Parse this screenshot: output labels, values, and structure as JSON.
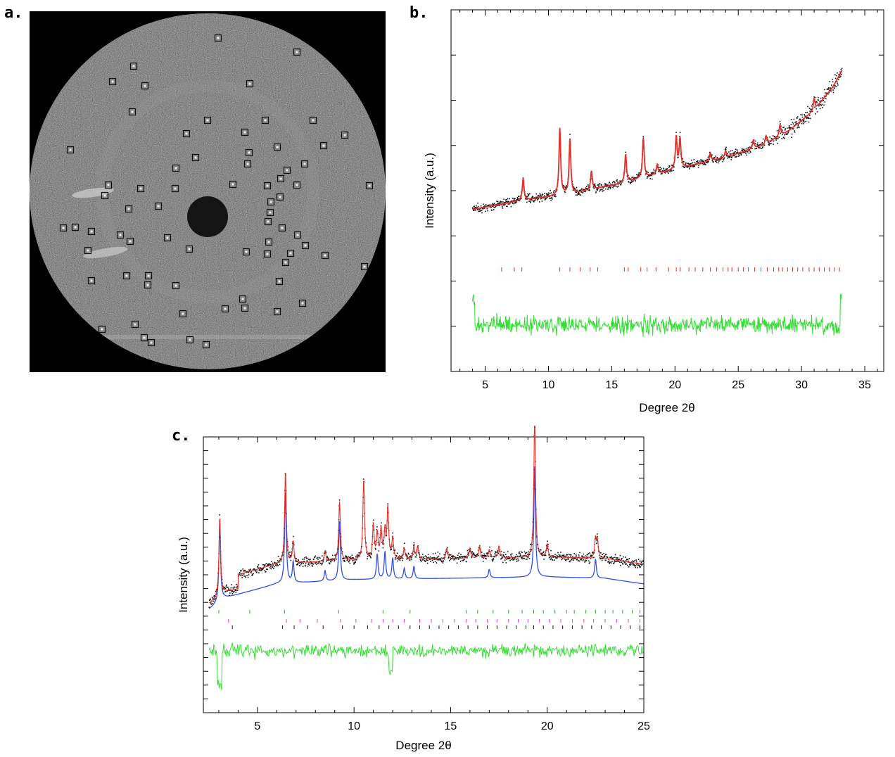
{
  "panel_labels": {
    "a": "a.",
    "b": "b.",
    "c": "c."
  },
  "colors": {
    "observed": "#111111",
    "calculated": "#e5302a",
    "difference": "#33dd33",
    "phase_blue": "#2f4fe6",
    "reflection_red": "#e5302a",
    "reflection_green": "#22aa22",
    "reflection_magenta": "#dd44dd",
    "reflection_black": "#111111"
  },
  "diffraction_image": {
    "description_icon": "electron-diffraction-pattern"
  },
  "chart_data": [
    {
      "type": "line",
      "panel": "b",
      "xlabel": "Degree 2θ",
      "ylabel": "Intensity (a.u.)",
      "xlim": [
        2.3,
        36.5
      ],
      "xticks": [
        5,
        10,
        15,
        20,
        25,
        30,
        35
      ],
      "x_range": [
        4,
        33.2
      ],
      "background": [
        [
          4,
          0.38
        ],
        [
          8,
          0.45
        ],
        [
          12,
          0.5
        ],
        [
          16,
          0.58
        ],
        [
          20,
          0.68
        ],
        [
          24,
          0.77
        ],
        [
          27,
          0.86
        ],
        [
          29,
          0.97
        ],
        [
          31,
          1.12
        ],
        [
          32.5,
          1.3
        ],
        [
          33.2,
          1.42
        ]
      ],
      "peaks": [
        {
          "x": 8.0,
          "h": 0.32
        },
        {
          "x": 10.9,
          "h": 1.0
        },
        {
          "x": 11.7,
          "h": 0.82
        },
        {
          "x": 13.4,
          "h": 0.28
        },
        {
          "x": 16.1,
          "h": 0.42
        },
        {
          "x": 17.5,
          "h": 0.6
        },
        {
          "x": 18.6,
          "h": 0.14
        },
        {
          "x": 20.1,
          "h": 0.48
        },
        {
          "x": 20.4,
          "h": 0.44
        },
        {
          "x": 22.8,
          "h": 0.12
        },
        {
          "x": 24.0,
          "h": 0.1
        },
        {
          "x": 26.2,
          "h": 0.12
        },
        {
          "x": 27.2,
          "h": 0.12
        },
        {
          "x": 28.3,
          "h": 0.16
        },
        {
          "x": 31.0,
          "h": 0.18
        }
      ],
      "reflection_marks": [
        6.3,
        7.3,
        7.9,
        10.9,
        11.7,
        12.5,
        13.3,
        13.9,
        16.0,
        16.3,
        17.3,
        17.8,
        18.5,
        19.5,
        20.1,
        20.4,
        21.1,
        21.6,
        22.2,
        22.8,
        23.3,
        23.8,
        24.2,
        24.5,
        25.0,
        25.4,
        25.8,
        26.3,
        26.8,
        27.3,
        27.8,
        28.2,
        28.5,
        28.9,
        29.3,
        29.7,
        30.1,
        30.6,
        31.0,
        31.4,
        31.8,
        32.2,
        32.6,
        33.0
      ]
    },
    {
      "type": "line",
      "panel": "c",
      "xlabel": "Degree 2θ",
      "ylabel": "Intensity (a.u.)",
      "xlim": [
        2.2,
        25
      ],
      "xticks": [
        5,
        10,
        15,
        20,
        25
      ],
      "x_range": [
        2.5,
        25
      ],
      "background": [
        [
          2.5,
          0.12
        ],
        [
          3.3,
          0.2
        ],
        [
          6,
          0.3
        ],
        [
          10,
          0.33
        ],
        [
          15,
          0.34
        ],
        [
          20,
          0.35
        ],
        [
          23,
          0.34
        ],
        [
          25,
          0.3
        ]
      ],
      "blue_peaks": [
        {
          "x": 3.05,
          "h": 0.75
        },
        {
          "x": 6.45,
          "h": 0.88
        },
        {
          "x": 6.85,
          "h": 0.2
        },
        {
          "x": 8.5,
          "h": 0.1
        },
        {
          "x": 9.25,
          "h": 0.56
        },
        {
          "x": 11.2,
          "h": 0.24
        },
        {
          "x": 11.6,
          "h": 0.26
        },
        {
          "x": 12.0,
          "h": 0.2
        },
        {
          "x": 12.6,
          "h": 0.1
        },
        {
          "x": 13.1,
          "h": 0.12
        },
        {
          "x": 17.0,
          "h": 0.08
        },
        {
          "x": 19.35,
          "h": 1.05
        },
        {
          "x": 22.5,
          "h": 0.18
        }
      ],
      "red_peaks": [
        {
          "x": 10.5,
          "h": 0.95
        },
        {
          "x": 11.0,
          "h": 0.4
        },
        {
          "x": 11.4,
          "h": 0.35
        },
        {
          "x": 11.75,
          "h": 0.6
        },
        {
          "x": 13.3,
          "h": 0.15
        },
        {
          "x": 14.8,
          "h": 0.12
        },
        {
          "x": 16.0,
          "h": 0.12
        },
        {
          "x": 16.5,
          "h": 0.14
        },
        {
          "x": 17.5,
          "h": 0.14
        },
        {
          "x": 19.35,
          "h": 0.35
        },
        {
          "x": 20.0,
          "h": 0.15
        },
        {
          "x": 22.6,
          "h": 0.2
        }
      ],
      "reflection_rows": [
        {
          "color": "green",
          "marks": [
            3.0,
            4.6,
            6.4,
            9.2,
            11.5,
            12.9,
            15.8,
            16.4,
            17.2,
            18.0,
            18.7,
            19.3,
            19.8,
            20.4,
            21.0,
            21.4,
            22.0,
            22.5,
            23.0,
            23.4,
            23.9,
            24.4,
            24.8
          ]
        },
        {
          "color": "magenta",
          "marks": [
            3.5,
            6.5,
            7.2,
            8.1,
            9.3,
            10.1,
            10.9,
            11.5,
            12.0,
            12.6,
            13.4,
            14.0,
            14.6,
            15.2,
            15.8,
            16.3,
            16.9,
            17.4,
            18.0,
            18.5,
            19.0,
            19.6,
            20.1,
            20.7,
            21.3,
            21.9,
            22.4,
            23.0,
            23.6,
            24.2,
            24.8
          ]
        },
        {
          "color": "black",
          "marks": [
            3.7,
            6.3,
            6.9,
            7.6,
            8.4,
            9.4,
            10.0,
            10.7,
            11.3,
            11.8,
            12.3,
            12.9,
            13.4,
            13.9,
            14.4,
            14.9,
            15.4,
            15.9,
            16.4,
            16.9,
            17.4,
            17.9,
            18.4,
            18.9,
            19.3,
            19.8,
            20.3,
            20.8,
            21.3,
            21.8,
            22.3,
            22.8,
            23.3,
            23.8,
            24.3,
            24.8
          ]
        }
      ]
    }
  ]
}
